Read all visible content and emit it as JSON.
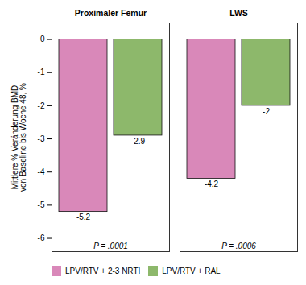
{
  "chart_data": {
    "type": "bar",
    "categories": [
      "Proximaler Femur",
      "LWS"
    ],
    "series": [
      {
        "name": "LPV/RTV + 2-3 NRTI",
        "color": "#D988B9",
        "values": [
          -5.2,
          -4.2
        ]
      },
      {
        "name": "LPV/RTV + RAL",
        "color": "#8DB86B",
        "values": [
          -2.9,
          -2
        ]
      }
    ],
    "ylabel": "Mittlere % Veränderung BMD\nvon Baseline bis Woche 48, %",
    "ylim": [
      -6.4,
      0.5
    ],
    "yticks": [
      0,
      -1,
      -2,
      -3,
      -4,
      -5,
      -6
    ],
    "annotations": [
      "P = .0001",
      "P = .0006"
    ],
    "data_labels": true,
    "legend": "bottom",
    "grid": false
  }
}
